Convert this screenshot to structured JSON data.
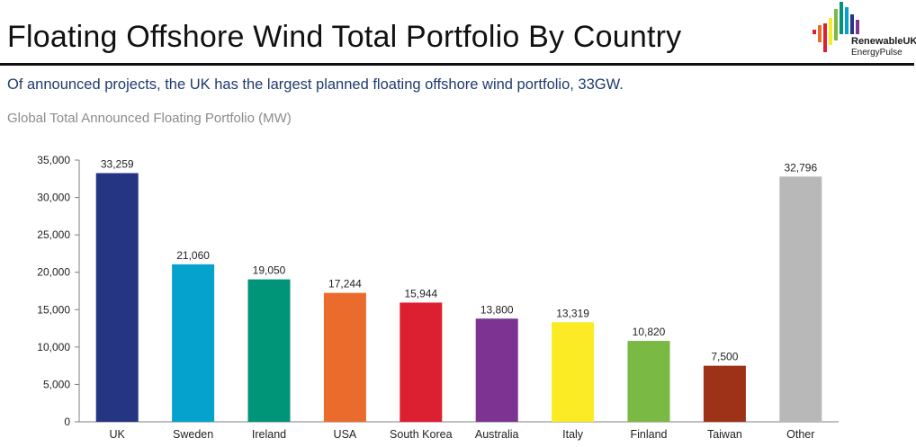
{
  "header": {
    "title": "Floating Offshore Wind Total Portfolio By Country",
    "subtitle": "Of announced projects, the UK has the largest planned floating offshore wind portfolio, 33GW.",
    "logo_line1": "RenewableUK",
    "logo_line2": "EnergyPulse"
  },
  "chart_data": {
    "type": "bar",
    "title": "Global Total Announced Floating Portfolio (MW)",
    "xlabel": "",
    "ylabel": "",
    "categories": [
      "UK",
      "Sweden",
      "Ireland",
      "USA",
      "South Korea",
      "Australia",
      "Italy",
      "Finland",
      "Taiwan",
      "Other"
    ],
    "values": [
      33259,
      21060,
      19050,
      17244,
      15944,
      13800,
      13319,
      10820,
      7500,
      32796
    ],
    "data_labels": [
      "33,259",
      "21,060",
      "19,050",
      "17,244",
      "15,944",
      "13,800",
      "13,319",
      "10,820",
      "7,500",
      "32,796"
    ],
    "colors": [
      "#253584",
      "#05a2cd",
      "#009478",
      "#ea6b2b",
      "#dd2031",
      "#7c3391",
      "#fbeb24",
      "#7ab944",
      "#9e3218",
      "#b8b8b8"
    ],
    "ylim": [
      0,
      35000
    ],
    "yticks": [
      0,
      5000,
      10000,
      15000,
      20000,
      25000,
      30000,
      35000
    ],
    "ytick_labels": [
      "0",
      "5,000",
      "10,000",
      "15,000",
      "20,000",
      "25,000",
      "30,000",
      "35,000"
    ],
    "grid": false,
    "legend": "none"
  }
}
